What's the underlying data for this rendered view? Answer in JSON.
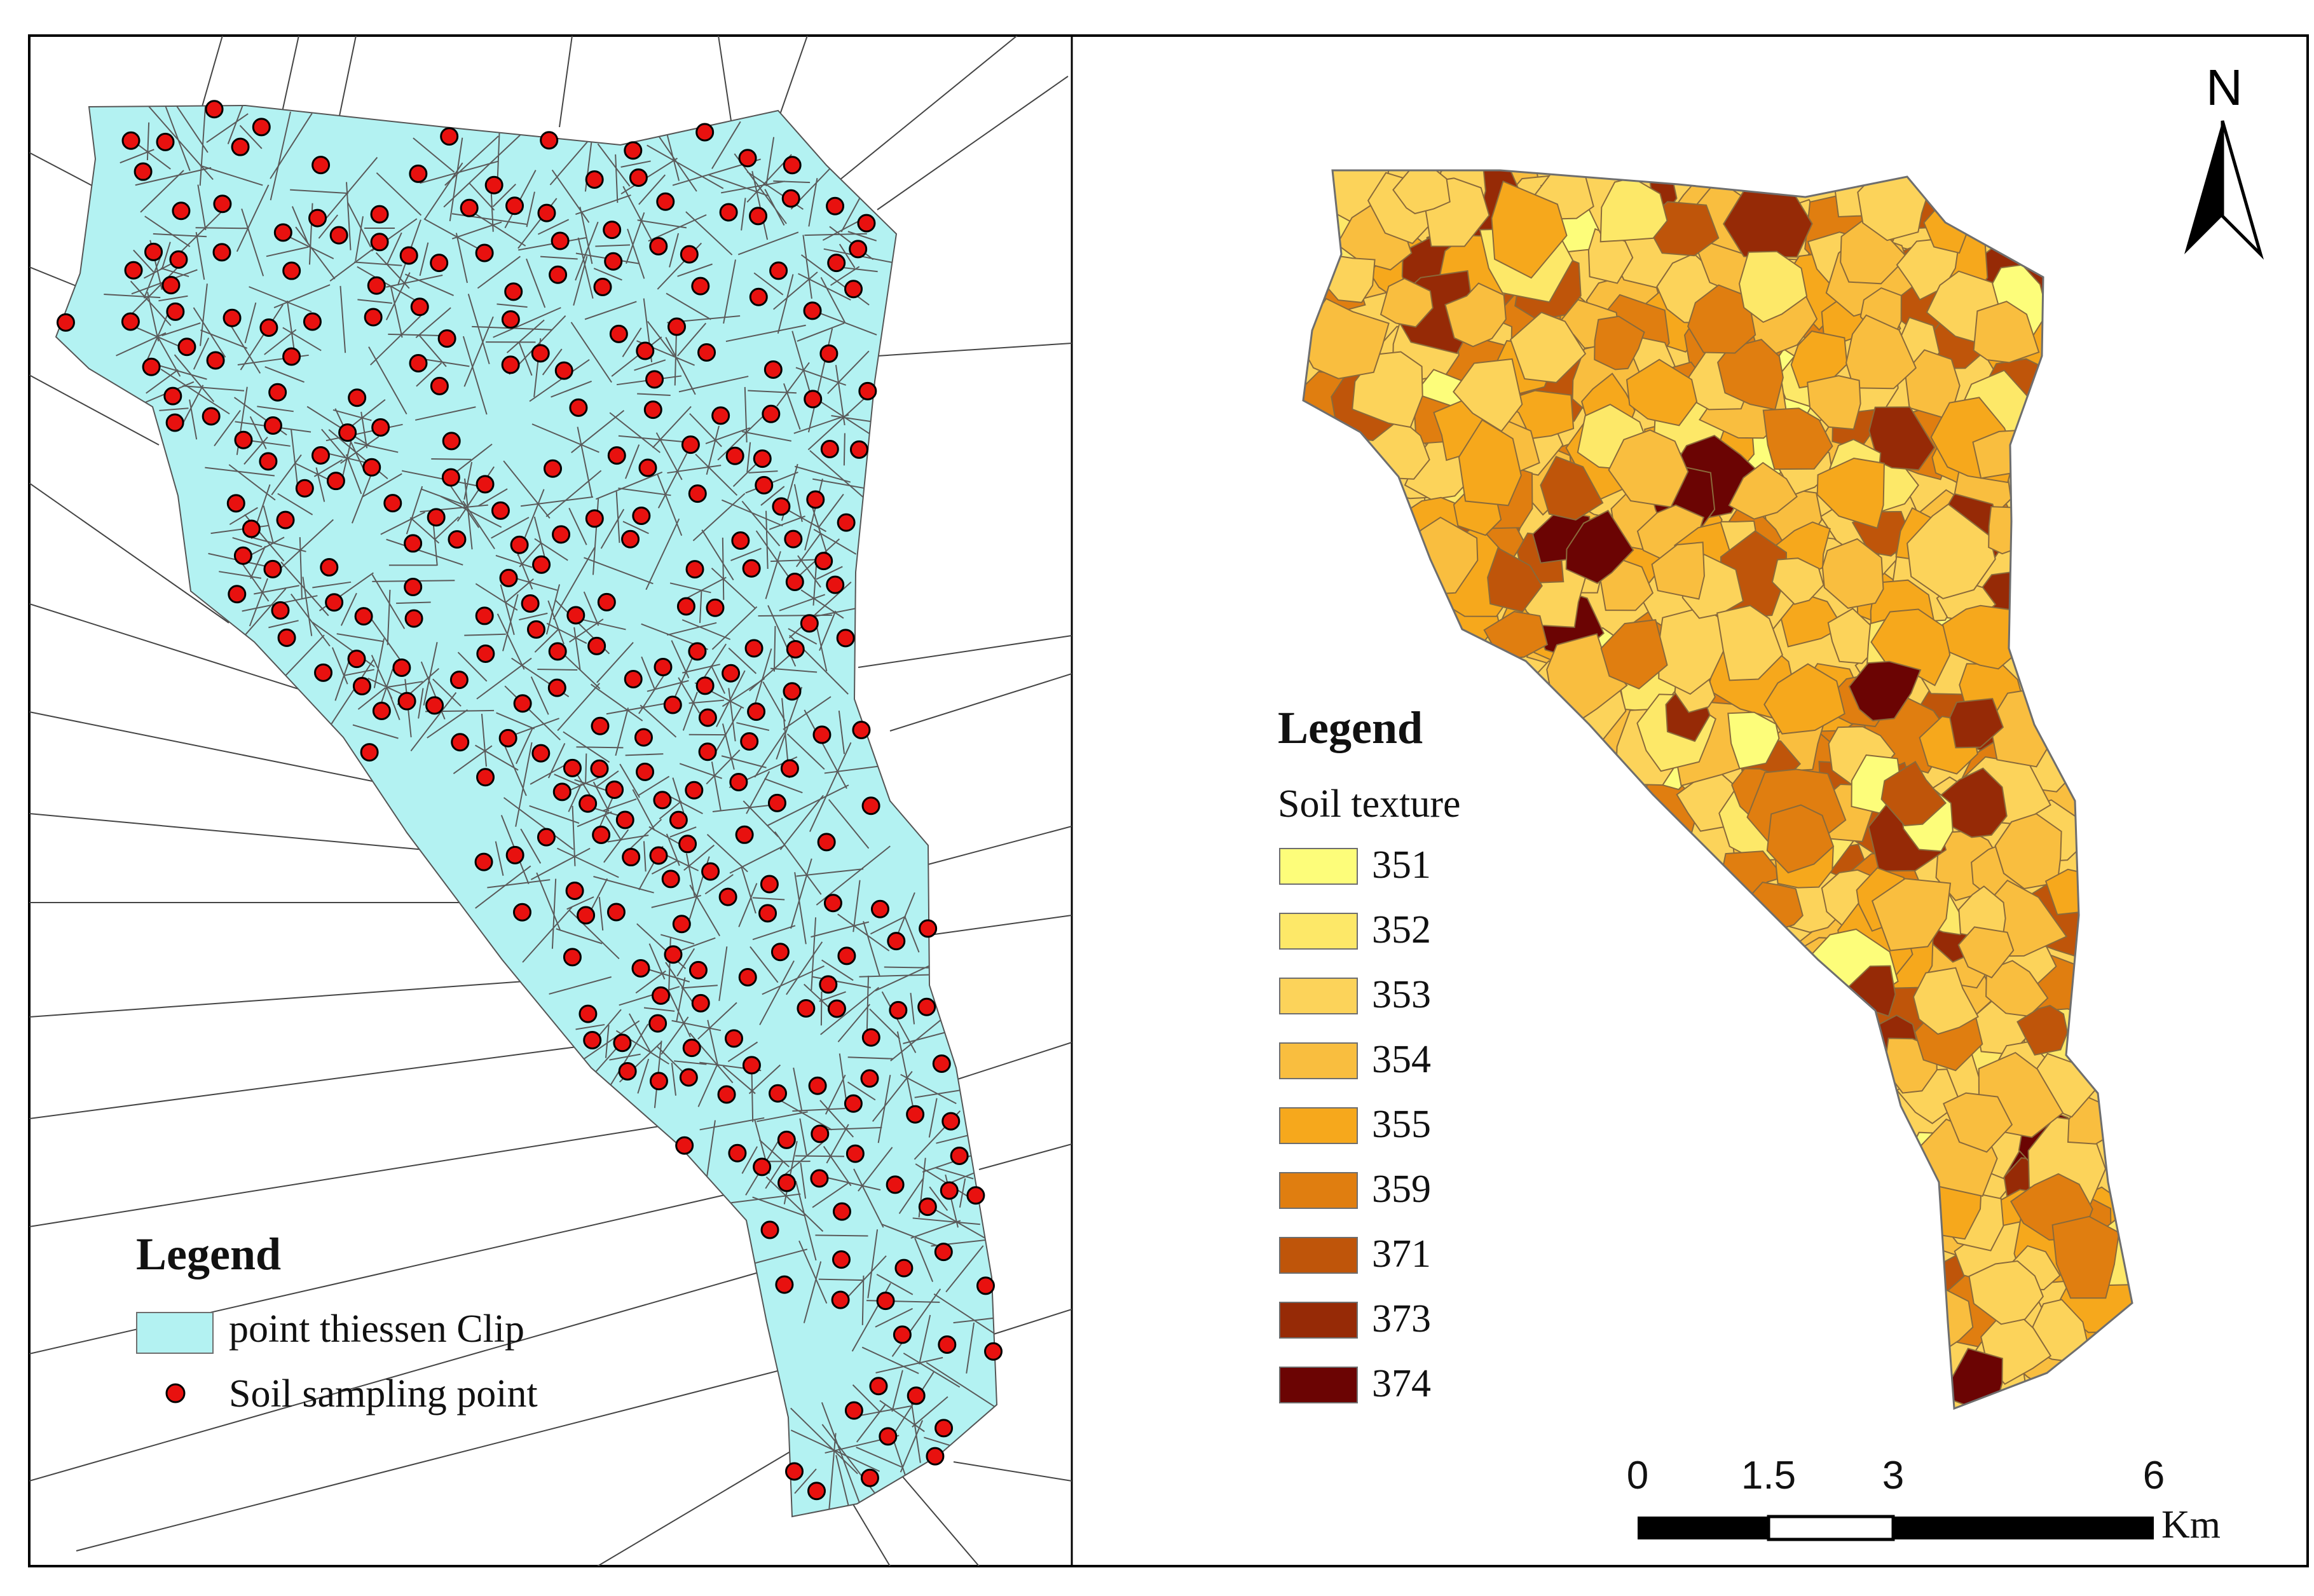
{
  "left_panel": {
    "legend": {
      "title": "Legend",
      "items": [
        {
          "label": "point thiessen Clip",
          "symbol": "polygon",
          "color": "#b3f2f2"
        },
        {
          "label": "Soil sampling point",
          "symbol": "circle",
          "color": "#e8110f"
        }
      ]
    }
  },
  "right_panel": {
    "north_arrow": {
      "label": "N"
    },
    "legend": {
      "title": "Legend",
      "subtitle": "Soil texture",
      "classes": [
        {
          "value": "351",
          "color": "#fdfd7a"
        },
        {
          "value": "352",
          "color": "#fde868"
        },
        {
          "value": "353",
          "color": "#fcd35a"
        },
        {
          "value": "354",
          "color": "#f9be3f"
        },
        {
          "value": "355",
          "color": "#f6a81c"
        },
        {
          "value": "359",
          "color": "#e07e10"
        },
        {
          "value": "371",
          "color": "#bf550a"
        },
        {
          "value": "373",
          "color": "#962a06"
        },
        {
          "value": "374",
          "color": "#6b0403"
        }
      ]
    },
    "scale_bar": {
      "ticks": [
        "0",
        "1.5",
        "3",
        "6"
      ],
      "tick_values": [
        0,
        1.5,
        3,
        6
      ],
      "unit": "Km"
    }
  },
  "colors": {
    "thiessen_fill": "#b3f2f2",
    "sample_point": "#e8110f",
    "cell_edge": "#5a5a5a",
    "frame": "#000000"
  }
}
